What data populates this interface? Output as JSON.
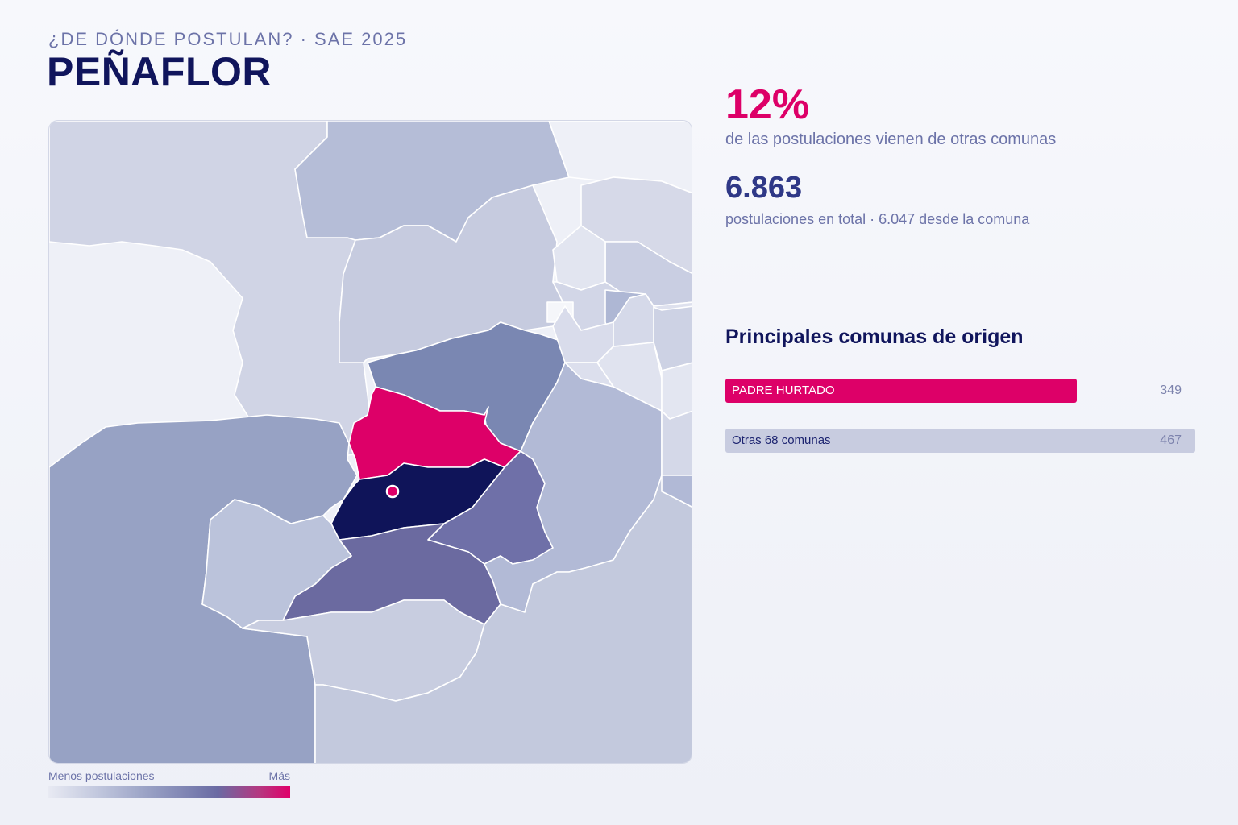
{
  "header": {
    "eyebrow": "¿DE DÓNDE POSTULAN? · SAE 2025",
    "title": "PEÑAFLOR"
  },
  "stats": {
    "external_pct": "12%",
    "external_desc": "de las postulaciones vienen de otras comunas",
    "total": "6.863",
    "total_desc": "postulaciones en total · 6.047 desde la comuna"
  },
  "origins": {
    "title": "Principales comunas de origen",
    "items": [
      {
        "label": "PADRE HURTADO",
        "value": "349",
        "fraction": 0.75,
        "color": "#dd0068",
        "text_color": "#ffffff"
      },
      {
        "label": "Otras 68 comunas",
        "value": "467",
        "fraction": 1.0,
        "color": "#c8cce0",
        "text_color": "#1c2370"
      }
    ]
  },
  "legend": {
    "less": "Menos postulaciones",
    "more": "Más"
  },
  "colors": {
    "accent": "#dd0068",
    "home": "#0f1459",
    "title": "#10155c"
  }
}
